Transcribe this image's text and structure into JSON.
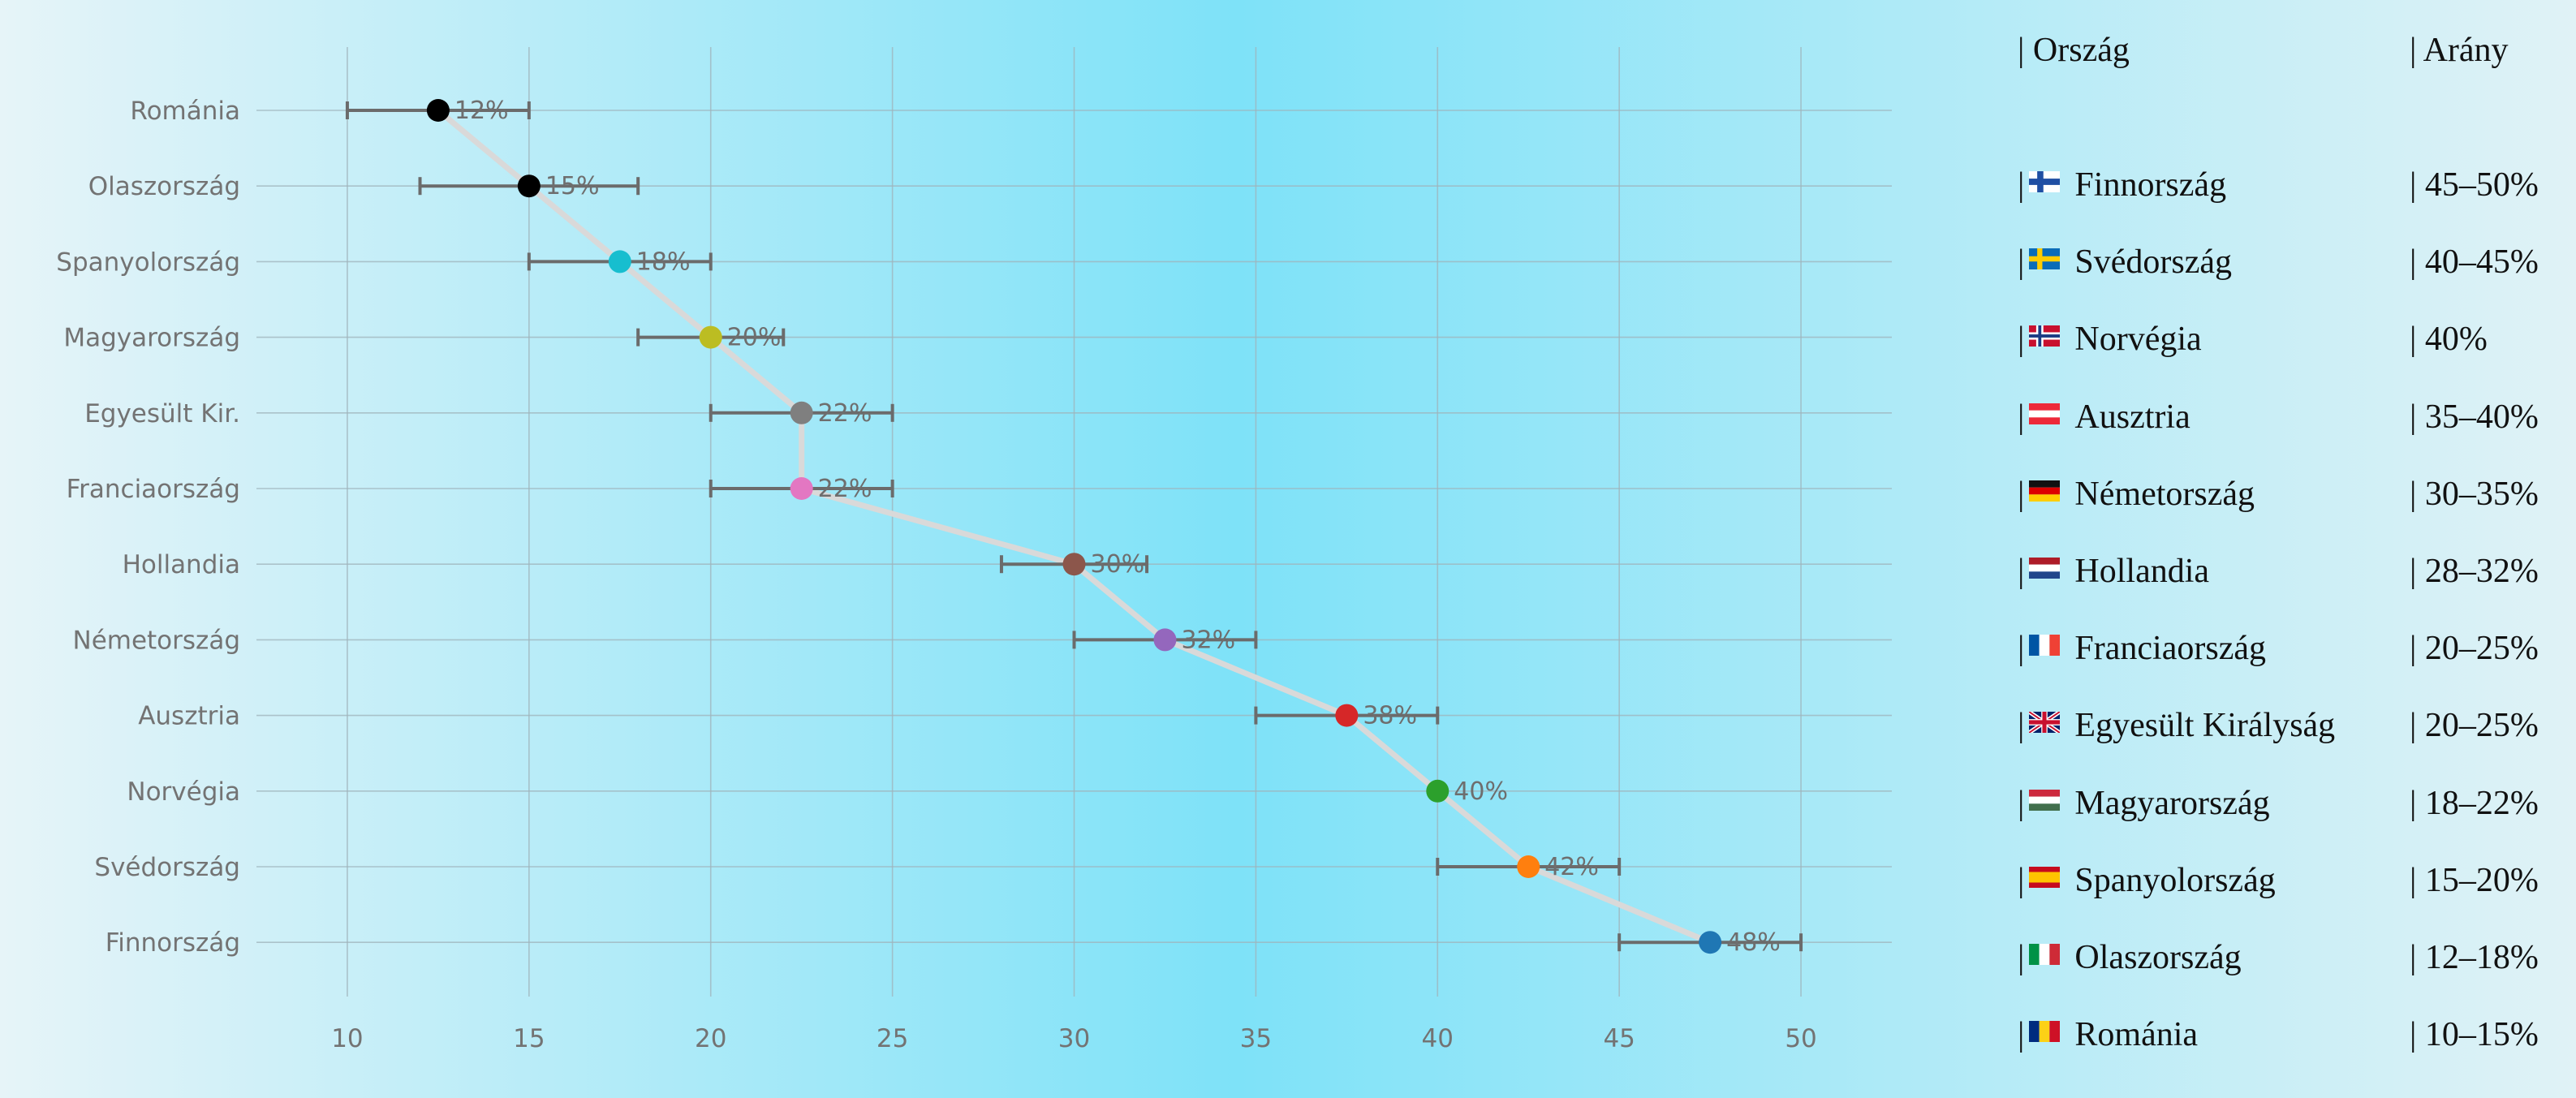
{
  "colors": {
    "connector": "#d9d9d9",
    "errorbar": "#6b6b6b",
    "grid": "#9fb3bb"
  },
  "chart_data": {
    "type": "scatter",
    "title": "",
    "xlabel": "",
    "ylabel": "",
    "xlim": [
      7.5,
      52.5
    ],
    "xticks": [
      10,
      15,
      20,
      25,
      30,
      35,
      40,
      45,
      50
    ],
    "grid": true,
    "legend": "none",
    "points": [
      {
        "category": "Románia",
        "value": 12.5,
        "low": 10,
        "high": 15,
        "label": "12%",
        "color": "#000000"
      },
      {
        "category": "Olaszország",
        "value": 15,
        "low": 12,
        "high": 18,
        "label": "15%",
        "color": "#000000"
      },
      {
        "category": "Spanyolország",
        "value": 17.5,
        "low": 15,
        "high": 20,
        "label": "18%",
        "color": "#17becf"
      },
      {
        "category": "Magyarország",
        "value": 20,
        "low": 18,
        "high": 22,
        "label": "20%",
        "color": "#bcbd22"
      },
      {
        "category": "Egyesült Kir.",
        "value": 22.5,
        "low": 20,
        "high": 25,
        "label": "22%",
        "color": "#7f7f7f"
      },
      {
        "category": "Franciaország",
        "value": 22.5,
        "low": 20,
        "high": 25,
        "label": "22%",
        "color": "#e377c2"
      },
      {
        "category": "Hollandia",
        "value": 30,
        "low": 28,
        "high": 32,
        "label": "30%",
        "color": "#8c564b"
      },
      {
        "category": "Németország",
        "value": 32.5,
        "low": 30,
        "high": 35,
        "label": "32%",
        "color": "#9467bd"
      },
      {
        "category": "Ausztria",
        "value": 37.5,
        "low": 35,
        "high": 40,
        "label": "38%",
        "color": "#d62728"
      },
      {
        "category": "Norvégia",
        "value": 40,
        "low": 40,
        "high": 40,
        "label": "40%",
        "color": "#2ca02c"
      },
      {
        "category": "Svédország",
        "value": 42.5,
        "low": 40,
        "high": 45,
        "label": "42%",
        "color": "#ff7f0e"
      },
      {
        "category": "Finnország",
        "value": 47.5,
        "low": 45,
        "high": 50,
        "label": "48%",
        "color": "#1f77b4"
      }
    ]
  },
  "table": {
    "headers": {
      "country": "| Ország",
      "ratio": "| Arány"
    },
    "rows": [
      {
        "country": "Finnország",
        "flag": "fi",
        "ratio": "| 45–50%"
      },
      {
        "country": "Svédország",
        "flag": "se",
        "ratio": "| 40–45%"
      },
      {
        "country": "Norvégia",
        "flag": "no",
        "ratio": "| 40%"
      },
      {
        "country": "Ausztria",
        "flag": "at",
        "ratio": "| 35–40%"
      },
      {
        "country": "Németország",
        "flag": "de",
        "ratio": "| 30–35%"
      },
      {
        "country": "Hollandia",
        "flag": "nl",
        "ratio": "| 28–32%"
      },
      {
        "country": "Franciaország",
        "flag": "fr",
        "ratio": "| 20–25%"
      },
      {
        "country": "Egyesült Királyság",
        "flag": "gb",
        "ratio": "| 20–25%"
      },
      {
        "country": "Magyarország",
        "flag": "hu",
        "ratio": "| 18–22%"
      },
      {
        "country": "Spanyolország",
        "flag": "es",
        "ratio": "| 15–20%"
      },
      {
        "country": "Olaszország",
        "flag": "it",
        "ratio": "| 12–18%"
      },
      {
        "country": "Románia",
        "flag": "ro",
        "ratio": "| 10–15%"
      }
    ]
  }
}
